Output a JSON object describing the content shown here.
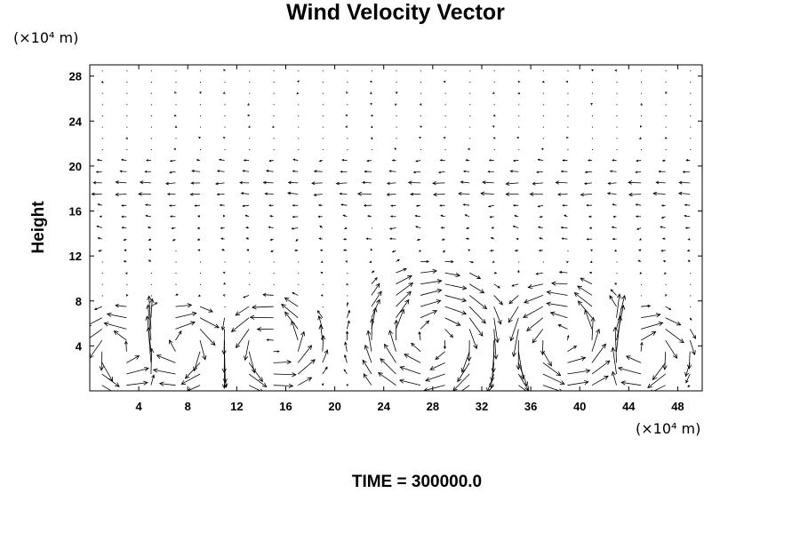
{
  "chart_data": {
    "type": "vector-field",
    "title": "Wind Velocity Vector",
    "ylabel": "Height",
    "y_unit": "(×10⁴ m)",
    "x_unit": "(×10⁴ m)",
    "annotation": "TIME = 300000.0",
    "xlim": [
      0,
      50
    ],
    "ylim": [
      0,
      29
    ],
    "x_ticks": [
      "4",
      "8",
      "12",
      "16",
      "20",
      "24",
      "28",
      "32",
      "36",
      "40",
      "44",
      "48"
    ],
    "y_ticks": [
      "4",
      "8",
      "12",
      "16",
      "20",
      "24",
      "28"
    ],
    "grid": false,
    "vortices": [
      {
        "cx": 2.5,
        "cy": 3.5,
        "r": 3.5,
        "dir": 1
      },
      {
        "cx": 7.5,
        "cy": 4.0,
        "r": 3.5,
        "dir": -1
      },
      {
        "cx": 15.0,
        "cy": 4.0,
        "r": 4.0,
        "dir": 1
      },
      {
        "cx": 28.0,
        "cy": 4.5,
        "r": 6.0,
        "dir": -1
      },
      {
        "cx": 38.5,
        "cy": 4.5,
        "r": 5.0,
        "dir": 1
      },
      {
        "cx": 45.5,
        "cy": 3.5,
        "r": 3.5,
        "dir": -1
      }
    ],
    "upper_jet": {
      "y": 18.0,
      "u": -1.2
    },
    "updraft_x": 34.0
  }
}
